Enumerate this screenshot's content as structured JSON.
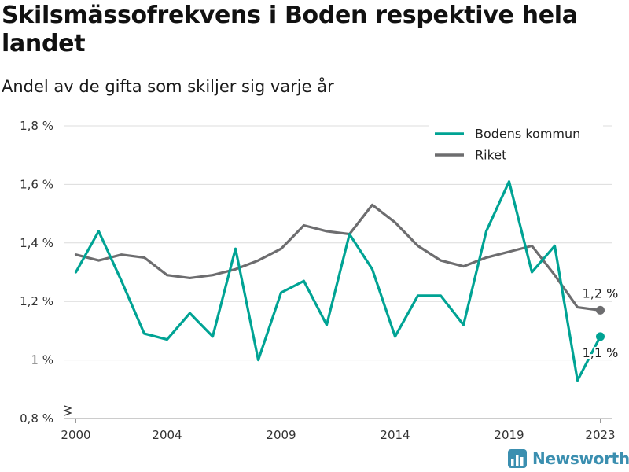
{
  "title": "Skilsmässofrekvens i Boden respektive hela landet",
  "subtitle": "Andel av de gifta som skiljer sig varje år",
  "brand": "Newsworthy",
  "chart_data": {
    "type": "line",
    "x": [
      2000,
      2001,
      2002,
      2003,
      2004,
      2005,
      2006,
      2007,
      2008,
      2009,
      2010,
      2011,
      2012,
      2013,
      2014,
      2015,
      2016,
      2017,
      2018,
      2019,
      2020,
      2021,
      2022,
      2023
    ],
    "x_ticks": [
      2000,
      2004,
      2009,
      2014,
      2019,
      2023
    ],
    "x_tick_labels": [
      "2000",
      "2004",
      "2009",
      "2014",
      "2019",
      "2023"
    ],
    "y_ticks": [
      0.8,
      1.0,
      1.2,
      1.4,
      1.6,
      1.8
    ],
    "y_tick_labels": [
      "0,8 %",
      "1 %",
      "1,2 %",
      "1,4 %",
      "1,6 %",
      "1,8 %"
    ],
    "ylim": [
      0.8,
      1.8
    ],
    "xlabel": "",
    "ylabel": "",
    "grid": "horizontal",
    "legend_position": "top-right",
    "axis_break": true,
    "series": [
      {
        "name": "Bodens kommun",
        "color": "#00a394",
        "values": [
          1.3,
          1.44,
          1.27,
          1.09,
          1.07,
          1.16,
          1.08,
          1.38,
          1.0,
          1.23,
          1.27,
          1.12,
          1.43,
          1.31,
          1.08,
          1.22,
          1.22,
          1.12,
          1.44,
          1.61,
          1.3,
          1.39,
          0.93,
          1.08
        ],
        "end_label": "1,1 %"
      },
      {
        "name": "Riket",
        "color": "#6d6d6f",
        "values": [
          1.36,
          1.34,
          1.36,
          1.35,
          1.29,
          1.28,
          1.29,
          1.31,
          1.34,
          1.38,
          1.46,
          1.44,
          1.43,
          1.53,
          1.47,
          1.39,
          1.34,
          1.32,
          1.35,
          1.37,
          1.39,
          1.29,
          1.18,
          1.17
        ],
        "end_label": "1,2 %"
      }
    ]
  }
}
